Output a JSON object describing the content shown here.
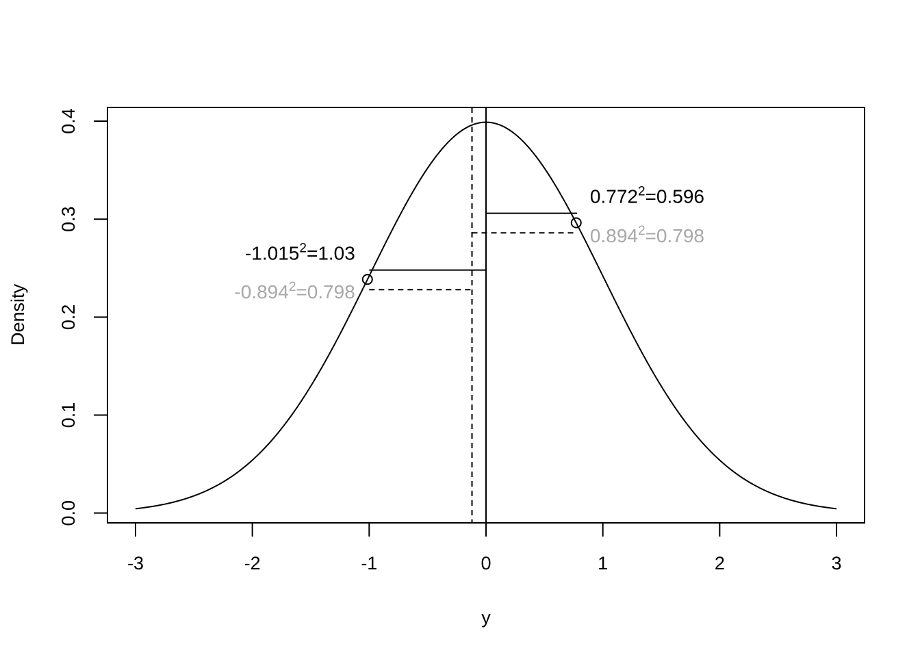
{
  "chart_data": {
    "type": "line",
    "title": "",
    "xlabel": "y",
    "ylabel": "Density",
    "xlim": [
      -3.24,
      3.24
    ],
    "ylim": [
      -0.01,
      0.414
    ],
    "grid": false,
    "legend": "none",
    "x_ticks": [
      -3,
      -2,
      -1,
      0,
      1,
      2,
      3
    ],
    "x_tick_labels": [
      "-3",
      "-2",
      "-1",
      "0",
      "1",
      "2",
      "3"
    ],
    "y_ticks": [
      0.0,
      0.1,
      0.2,
      0.3,
      0.4
    ],
    "y_tick_labels": [
      "0.0",
      "0.1",
      "0.2",
      "0.3",
      "0.4"
    ],
    "curve": {
      "kind": "standard-normal-density",
      "x_range": [
        -3,
        3
      ],
      "color": "#000000"
    },
    "vertical_lines": [
      {
        "x": 0.0,
        "style": "solid",
        "color": "#000000"
      },
      {
        "x": -0.12,
        "style": "dashed",
        "color": "#000000"
      }
    ],
    "points": [
      {
        "x": -1.015,
        "y": 0.2385
      },
      {
        "x": 0.772,
        "y": 0.2963
      }
    ],
    "segments": [
      {
        "x0": -1.0,
        "x1": 0.0,
        "y": 0.248,
        "style": "solid"
      },
      {
        "x0": -1.0,
        "x1": -0.12,
        "y": 0.228,
        "style": "dashed"
      },
      {
        "x0": 0.0,
        "x1": 0.78,
        "y": 0.306,
        "style": "solid"
      },
      {
        "x0": -0.12,
        "x1": 0.78,
        "y": 0.286,
        "style": "dashed"
      }
    ],
    "annotations": [
      {
        "base": "-1.015",
        "sup": "2",
        "rest": "=1.03",
        "color": "#000000",
        "x": -1.12,
        "y": 0.2585,
        "anchor": "end"
      },
      {
        "base": "-0.894",
        "sup": "2",
        "rest": "=0.798",
        "color": "#a8a8a8",
        "x": -1.12,
        "y": 0.219,
        "anchor": "end"
      },
      {
        "base": "0.772",
        "sup": "2",
        "rest": "=0.596",
        "color": "#000000",
        "x": 0.89,
        "y": 0.3165,
        "anchor": "start"
      },
      {
        "base": "0.894",
        "sup": "2",
        "rest": "=0.798",
        "color": "#a8a8a8",
        "x": 0.89,
        "y": 0.2765,
        "anchor": "start"
      }
    ]
  }
}
